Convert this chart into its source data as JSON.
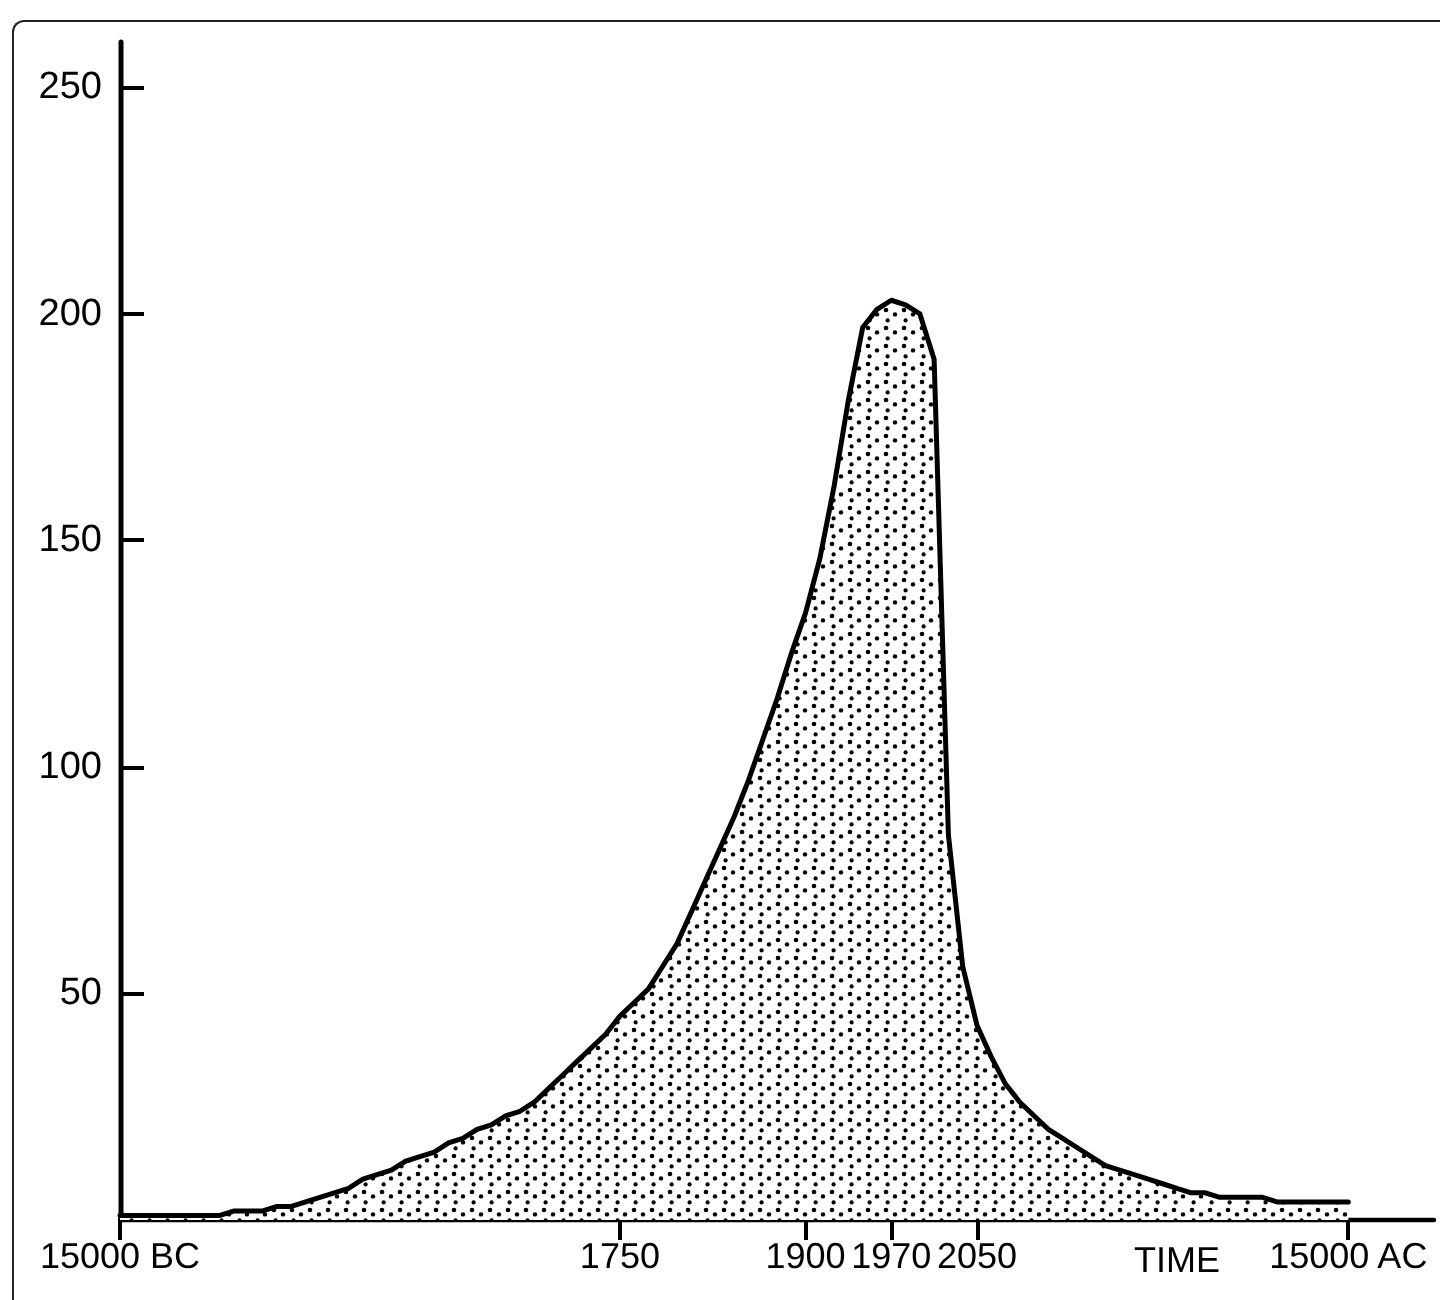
{
  "chart_data": {
    "type": "area",
    "xlabel": "TIME",
    "categories": [
      "15000 BC",
      null,
      null,
      null,
      null,
      null,
      null,
      null,
      null,
      null,
      null,
      null,
      null,
      null,
      null,
      null,
      null,
      null,
      null,
      null,
      null,
      null,
      null,
      null,
      null,
      null,
      null,
      null,
      null,
      null,
      null,
      null,
      null,
      null,
      null,
      "1750",
      null,
      null,
      null,
      null,
      null,
      null,
      null,
      null,
      null,
      null,
      null,
      null,
      "1900",
      null,
      null,
      null,
      null,
      null,
      "1970",
      null,
      null,
      null,
      null,
      null,
      "2050",
      null,
      null,
      null,
      null,
      null,
      null,
      null,
      null,
      null,
      null,
      null,
      null,
      null,
      null,
      null,
      null,
      null,
      null,
      null,
      null,
      null,
      null,
      null,
      null,
      null,
      "15000 AC",
      null,
      null,
      null,
      null,
      null,
      null
    ],
    "values": [
      1,
      1,
      1,
      1,
      1,
      1,
      1,
      1,
      2,
      2,
      2,
      3,
      3,
      4,
      5,
      6,
      7,
      9,
      10,
      11,
      13,
      14,
      15,
      17,
      18,
      20,
      21,
      23,
      24,
      26,
      29,
      32,
      35,
      38,
      41,
      45,
      48,
      51,
      56,
      61,
      68,
      75,
      82,
      89,
      97,
      106,
      115,
      125,
      134,
      146,
      162,
      181,
      197,
      201,
      203,
      202,
      200,
      190,
      85,
      56,
      43,
      36,
      30,
      26,
      23,
      20,
      18,
      16,
      14,
      12,
      11,
      10,
      9,
      8,
      7,
      6,
      6,
      5,
      5,
      5,
      5,
      4,
      4,
      4,
      4,
      4,
      4,
      null,
      null,
      null,
      null,
      null,
      null
    ],
    "color": "#000000",
    "ylim": [
      0,
      260
    ],
    "yticks": [
      50,
      100,
      150,
      200,
      250
    ]
  }
}
